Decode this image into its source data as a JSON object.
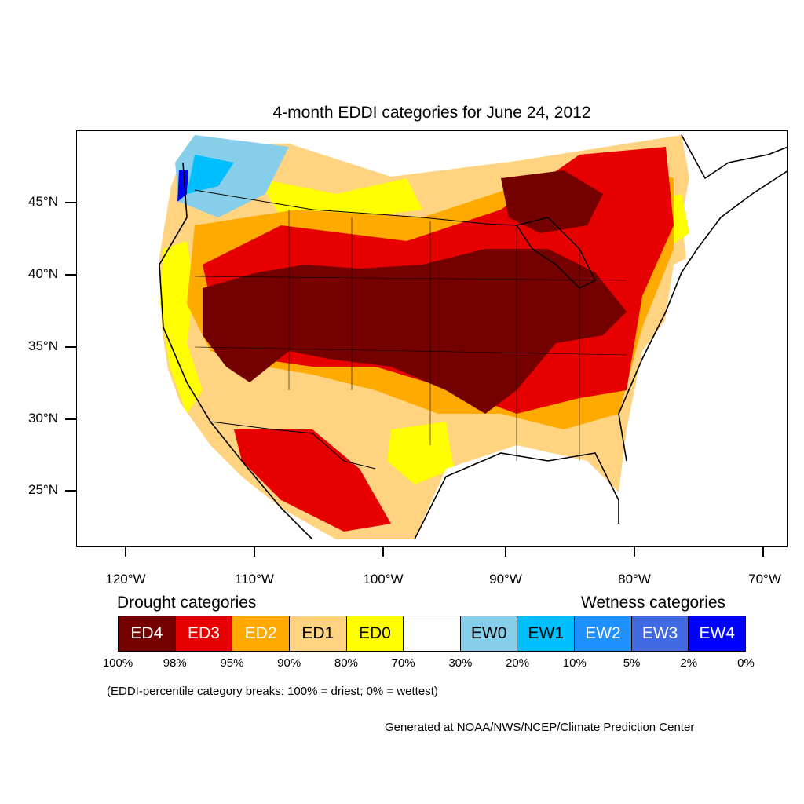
{
  "title": "4-month EDDI categories for June 24, 2012",
  "lat_labels": [
    "45°N",
    "40°N",
    "35°N",
    "30°N",
    "25°N"
  ],
  "lon_labels": [
    "120°W",
    "110°W",
    "100°W",
    "90°W",
    "80°W",
    "70°W"
  ],
  "legend": {
    "drought_heading": "Drought categories",
    "wetness_heading": "Wetness categories",
    "categories": [
      {
        "label": "ED4",
        "color": "#750000",
        "text_color": "#ffffff"
      },
      {
        "label": "ED3",
        "color": "#e60000",
        "text_color": "#ffffff"
      },
      {
        "label": "ED2",
        "color": "#ffaa00",
        "text_color": "#ffffff"
      },
      {
        "label": "ED1",
        "color": "#ffd37f",
        "text_color": "#000000"
      },
      {
        "label": "ED0",
        "color": "#ffff00",
        "text_color": "#000000"
      },
      {
        "label": "",
        "color": "#ffffff",
        "text_color": "#000000"
      },
      {
        "label": "EW0",
        "color": "#87ceeb",
        "text_color": "#000000"
      },
      {
        "label": "EW1",
        "color": "#00bfff",
        "text_color": "#000000"
      },
      {
        "label": "EW2",
        "color": "#1e90ff",
        "text_color": "#ffffff"
      },
      {
        "label": "EW3",
        "color": "#4169e1",
        "text_color": "#ffffff"
      },
      {
        "label": "EW4",
        "color": "#0000ff",
        "text_color": "#ffffff"
      }
    ],
    "percentiles": [
      "100%",
      "98%",
      "95%",
      "90%",
      "80%",
      "70%",
      "30%",
      "20%",
      "10%",
      "5%",
      "2%",
      "0%"
    ]
  },
  "note": "(EDDI-percentile category breaks: 100% = driest; 0% = wettest)",
  "credit": "Generated at NOAA/NWS/NCEP/Climate Prediction Center"
}
